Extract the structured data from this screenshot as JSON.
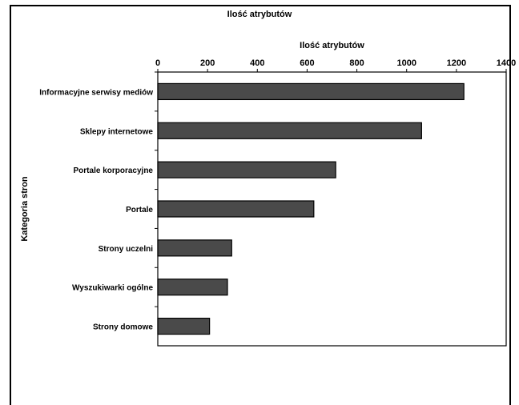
{
  "chart_data": {
    "type": "bar",
    "orientation": "horizontal",
    "title": "Ilość atrybutów",
    "xlabel": "Ilość atrybutów",
    "ylabel": "Kategoria stron",
    "xlim": [
      0,
      1400
    ],
    "xticks": [
      0,
      200,
      400,
      600,
      800,
      1000,
      1200,
      1400
    ],
    "x_axis_position": "top",
    "grid": false,
    "categories": [
      "Informacyjne serwisy mediów",
      "Sklepy internetowe",
      "Portale korporacyjne",
      "Portale",
      "Strony uczelni",
      "Wyszukiwarki ogólne",
      "Strony domowe"
    ],
    "values": [
      1230,
      1060,
      715,
      627,
      297,
      280,
      208
    ],
    "bar_color": "#4a4a4a"
  }
}
